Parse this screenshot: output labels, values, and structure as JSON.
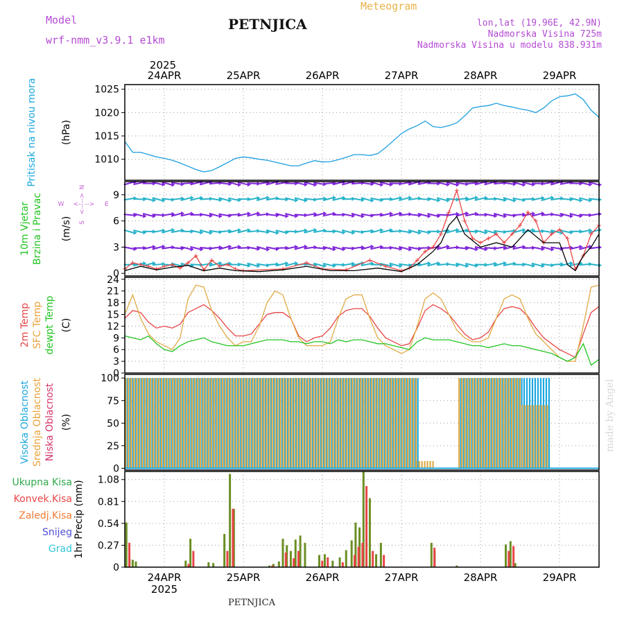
{
  "header": {
    "model_label": "Model",
    "model_name": "wrf-nmm_v3.9.1 e1km",
    "station": "PETNJICA",
    "product": "Meteogram",
    "lonlat": "lon,lat (19.96E, 42.9N)",
    "elevation": "Nadmorska Visina 725m",
    "model_elevation": "Nadmorska Visina u modelu 838.931m",
    "footer": "PETNJICA",
    "watermark": "made by Angel",
    "colors": {
      "purple": "#b44bd3",
      "orange": "#e8b24a"
    }
  },
  "time_axis": {
    "labels": [
      "24APR",
      "25APR",
      "26APR",
      "27APR",
      "28APR",
      "29APR"
    ],
    "year": "2025",
    "start_day": 23.5,
    "end_day": 29.5
  },
  "chart_data": [
    {
      "type": "line",
      "panel": "pressure",
      "ylabel": [
        "Pritisak na nivou mora",
        "(hPa)"
      ],
      "ylabel_colors": [
        "#1ba7e0",
        "#000000"
      ],
      "yticks": [
        1010,
        1015,
        1020,
        1025
      ],
      "ylim": [
        1005.5,
        1026
      ],
      "grid": true,
      "series": [
        {
          "color": "#1b9ee0",
          "x": [
            23.5,
            23.6,
            23.7,
            23.8,
            23.9,
            24.0,
            24.1,
            24.2,
            24.3,
            24.4,
            24.5,
            24.6,
            24.7,
            24.8,
            24.9,
            25.0,
            25.1,
            25.2,
            25.3,
            25.4,
            25.5,
            25.6,
            25.7,
            25.8,
            25.9,
            26.0,
            26.1,
            26.2,
            26.3,
            26.4,
            26.5,
            26.6,
            26.7,
            26.8,
            26.9,
            27.0,
            27.1,
            27.2,
            27.3,
            27.4,
            27.5,
            27.6,
            27.7,
            27.8,
            27.9,
            28.0,
            28.1,
            28.2,
            28.3,
            28.4,
            28.5,
            28.6,
            28.7,
            28.8,
            28.9,
            29.0,
            29.1,
            29.2,
            29.3,
            29.4,
            29.5
          ],
          "y": [
            1013.8,
            1011.5,
            1011.5,
            1011.0,
            1010.5,
            1010.2,
            1009.8,
            1009.2,
            1008.5,
            1007.8,
            1007.3,
            1007.6,
            1008.4,
            1009.3,
            1010.2,
            1010.5,
            1010.3,
            1010.0,
            1009.8,
            1009.4,
            1009.0,
            1008.6,
            1008.6,
            1009.2,
            1009.7,
            1009.4,
            1009.5,
            1009.9,
            1010.4,
            1011.0,
            1011.0,
            1010.8,
            1011.2,
            1012.5,
            1014.0,
            1015.5,
            1016.5,
            1017.2,
            1018.2,
            1017.0,
            1016.8,
            1017.2,
            1017.8,
            1019.3,
            1021.0,
            1021.3,
            1021.5,
            1022.0,
            1021.5,
            1021.2,
            1020.8,
            1020.5,
            1020.0,
            1021.0,
            1022.5,
            1023.4,
            1023.6,
            1024.0,
            1022.8,
            1020.5,
            1019.0
          ]
        }
      ]
    },
    {
      "type": "line",
      "panel": "wind",
      "ylabel": [
        "10m Vjetar",
        "Brzina i Pravac",
        "(m/s)"
      ],
      "ylabel_colors": [
        "#22c422",
        "#22c422",
        "#000000"
      ],
      "compass": {
        "n": "N",
        "s": "S",
        "w": "W",
        "e": "E",
        "arrow": "<-- -->"
      },
      "yticks": [
        0,
        3,
        6,
        9
      ],
      "ylim": [
        -0.3,
        10.5
      ],
      "grid": true,
      "series": [
        {
          "name": "gust",
          "color": "#e84545",
          "marker": "+",
          "x": [
            23.5,
            23.6,
            23.7,
            23.8,
            23.9,
            24.0,
            24.1,
            24.2,
            24.3,
            24.4,
            24.5,
            24.6,
            24.7,
            24.8,
            24.9,
            25.0,
            25.5,
            25.8,
            26.0,
            26.3,
            26.6,
            26.8,
            27.0,
            27.1,
            27.2,
            27.3,
            27.4,
            27.5,
            27.6,
            27.7,
            27.8,
            27.9,
            28.0,
            28.1,
            28.2,
            28.3,
            28.4,
            28.5,
            28.6,
            28.7,
            28.8,
            28.9,
            29.0,
            29.1,
            29.2,
            29.3,
            29.4,
            29.5
          ],
          "y": [
            0.5,
            1.2,
            1.0,
            0.8,
            0.5,
            0.8,
            1.0,
            0.6,
            1.2,
            2.0,
            0.4,
            1.5,
            0.8,
            1.0,
            0.5,
            0.3,
            0.5,
            1.2,
            0.5,
            0.4,
            1.5,
            0.8,
            0.3,
            0.6,
            1.5,
            2.5,
            3.0,
            4.5,
            7.0,
            9.5,
            6.0,
            4.0,
            3.5,
            4.0,
            4.5,
            3.5,
            4.5,
            5.5,
            7.0,
            6.0,
            3.5,
            4.5,
            5.0,
            4.0,
            0.5,
            2.0,
            4.5,
            5.5
          ]
        },
        {
          "name": "speed",
          "color": "#000000",
          "x": [
            23.5,
            23.7,
            23.9,
            24.1,
            24.3,
            24.5,
            24.7,
            24.9,
            25.2,
            25.5,
            25.8,
            26.1,
            26.4,
            26.7,
            27.0,
            27.2,
            27.4,
            27.5,
            27.6,
            27.7,
            27.8,
            28.0,
            28.2,
            28.4,
            28.5,
            28.6,
            28.8,
            29.0,
            29.1,
            29.2,
            29.3,
            29.4,
            29.5
          ],
          "y": [
            0.3,
            0.8,
            0.4,
            0.7,
            0.9,
            0.3,
            0.6,
            0.3,
            0.2,
            0.4,
            0.8,
            0.3,
            0.3,
            0.6,
            0.2,
            1.0,
            2.5,
            3.5,
            5.5,
            6.5,
            4.5,
            3.0,
            3.5,
            3.0,
            4.0,
            5.0,
            3.5,
            3.5,
            1.0,
            0.3,
            2.0,
            3.0,
            4.5
          ]
        }
      ],
      "arrow_rows": [
        {
          "level": 10.3,
          "color": "#7e22d9"
        },
        {
          "level": 8.5,
          "color": "#25b2c9"
        },
        {
          "level": 6.7,
          "color": "#7e22d9"
        },
        {
          "level": 4.8,
          "color": "#25b2c9"
        },
        {
          "level": 2.9,
          "color": "#7e22d9"
        },
        {
          "level": 1.0,
          "color": "#25b2c9"
        }
      ]
    },
    {
      "type": "line",
      "panel": "temperature",
      "ylabel": [
        "2m Temp",
        "SFC Temp",
        "dewpt Temp",
        "(C)"
      ],
      "ylabel_colors": [
        "#e84545",
        "#e8a23a",
        "#22c422",
        "#000000"
      ],
      "yticks": [
        0,
        3,
        6,
        9,
        12,
        15,
        18,
        21,
        24
      ],
      "ylim": [
        0,
        24.5
      ],
      "grid": true,
      "series": [
        {
          "name": "2m Temp",
          "color": "#e84545",
          "x": [
            23.5,
            23.6,
            23.7,
            23.8,
            23.9,
            24.0,
            24.1,
            24.2,
            24.3,
            24.4,
            24.5,
            24.6,
            24.7,
            24.8,
            24.9,
            25.0,
            25.1,
            25.2,
            25.3,
            25.4,
            25.5,
            25.6,
            25.7,
            25.8,
            25.9,
            26.0,
            26.1,
            26.2,
            26.3,
            26.4,
            26.5,
            26.6,
            26.7,
            26.8,
            26.9,
            27.0,
            27.1,
            27.2,
            27.3,
            27.4,
            27.5,
            27.6,
            27.7,
            27.8,
            27.9,
            28.0,
            28.1,
            28.2,
            28.3,
            28.4,
            28.5,
            28.6,
            28.7,
            28.8,
            28.9,
            29.0,
            29.1,
            29.2,
            29.3,
            29.4,
            29.5
          ],
          "y": [
            14,
            16,
            15.5,
            13,
            11.5,
            12,
            11.5,
            12.5,
            15.5,
            16.5,
            17.5,
            16,
            14,
            11.5,
            9.5,
            9.5,
            10,
            12.5,
            15,
            15.5,
            15.5,
            14,
            9.5,
            8,
            9,
            9.5,
            11.5,
            14.5,
            16,
            16.5,
            16.5,
            14.5,
            11.5,
            9,
            8,
            7,
            7.5,
            11.5,
            16,
            17.5,
            16.5,
            15,
            12.5,
            10,
            8.5,
            9,
            10.5,
            14,
            16.5,
            17,
            16.5,
            14.5,
            11.5,
            9,
            7.5,
            6,
            5,
            4,
            10,
            15.5,
            17
          ]
        },
        {
          "name": "SFC Temp",
          "color": "#e0aa45",
          "x": [
            23.5,
            23.6,
            23.7,
            23.8,
            23.9,
            24.0,
            24.1,
            24.2,
            24.3,
            24.4,
            24.5,
            24.6,
            24.7,
            24.8,
            24.9,
            25.0,
            25.1,
            25.2,
            25.3,
            25.4,
            25.5,
            25.6,
            25.7,
            25.8,
            25.9,
            26.0,
            26.1,
            26.2,
            26.3,
            26.4,
            26.5,
            26.6,
            26.7,
            26.8,
            26.9,
            27.0,
            27.1,
            27.2,
            27.3,
            27.4,
            27.5,
            27.6,
            27.7,
            27.8,
            27.9,
            28.0,
            28.1,
            28.2,
            28.3,
            28.4,
            28.5,
            28.6,
            28.7,
            28.8,
            28.9,
            29.0,
            29.1,
            29.2,
            29.3,
            29.4,
            29.5
          ],
          "y": [
            15,
            20,
            14,
            10,
            8,
            7,
            6,
            9,
            19,
            22.5,
            22,
            16,
            12,
            9,
            7,
            8,
            8,
            12,
            18,
            21,
            20,
            14,
            9,
            7,
            7,
            7,
            8,
            14,
            19,
            20,
            20,
            14,
            9,
            7,
            6,
            5,
            6,
            12,
            19,
            20.5,
            19,
            15,
            11,
            9,
            8,
            8,
            9,
            14,
            19,
            20,
            19,
            14,
            10,
            8,
            6,
            4,
            3,
            3,
            12,
            22,
            22.5
          ]
        },
        {
          "name": "dewpt Temp",
          "color": "#22c422",
          "x": [
            23.5,
            23.6,
            23.7,
            23.8,
            23.9,
            24.0,
            24.1,
            24.2,
            24.3,
            24.4,
            24.5,
            24.6,
            24.7,
            24.8,
            24.9,
            25.0,
            25.1,
            25.2,
            25.3,
            25.4,
            25.5,
            25.6,
            25.7,
            25.8,
            25.9,
            26.0,
            26.1,
            26.2,
            26.3,
            26.4,
            26.5,
            26.6,
            26.7,
            26.8,
            26.9,
            27.0,
            27.1,
            27.2,
            27.3,
            27.4,
            27.5,
            27.6,
            27.7,
            27.8,
            27.9,
            28.0,
            28.1,
            28.2,
            28.3,
            28.4,
            28.5,
            28.6,
            28.7,
            28.8,
            28.9,
            29.0,
            29.1,
            29.2,
            29.3,
            29.4,
            29.5
          ],
          "y": [
            9.5,
            9,
            8.5,
            9.5,
            7.5,
            6,
            5.5,
            7,
            8,
            8.5,
            9,
            8,
            7.5,
            7,
            7,
            7,
            7.5,
            8,
            8.5,
            8.5,
            8.5,
            8,
            8,
            7.5,
            8,
            8,
            7.5,
            8.5,
            8,
            8.5,
            8.5,
            8,
            7.5,
            7.5,
            7,
            6.5,
            6,
            8,
            9,
            8.5,
            8.5,
            8.5,
            8,
            7.5,
            7,
            7,
            6.5,
            7,
            7.5,
            7,
            7,
            6.5,
            6,
            5.5,
            5,
            4,
            3,
            4,
            7.5,
            2,
            3.5
          ]
        }
      ]
    },
    {
      "type": "bar",
      "panel": "cloud",
      "ylabel": [
        "Visoka Oblacnost",
        "Srednja Oblacnost",
        "Niska Oblacnost",
        "(%)"
      ],
      "ylabel_colors": [
        "#1ba7e0",
        "#e8a23a",
        "#d6336c",
        "#000000"
      ],
      "yticks": [
        0,
        25,
        50,
        75,
        100
      ],
      "ylim": [
        -2,
        104
      ],
      "grid": true,
      "series": [
        {
          "name": "Visoka Oblacnost",
          "color": "#1ba7e0"
        },
        {
          "name": "Srednja Oblacnost",
          "color": "#e0aa45"
        },
        {
          "name": "Niska Oblacnost",
          "color": "#d6336c"
        }
      ],
      "segments": [
        {
          "x0": 23.5,
          "x1": 27.18,
          "high": 100,
          "mid": 100
        },
        {
          "x0": 27.18,
          "x1": 27.42,
          "high": 0,
          "mid": 8
        },
        {
          "x0": 27.42,
          "x1": 27.72,
          "high": 0,
          "mid": 0
        },
        {
          "x0": 27.72,
          "x1": 28.52,
          "high": 100,
          "mid": 100
        },
        {
          "x0": 28.52,
          "x1": 28.86,
          "high": 100,
          "mid": 70
        },
        {
          "x0": 28.86,
          "x1": 29.5,
          "high": 0,
          "mid": 0
        }
      ]
    },
    {
      "type": "bar",
      "panel": "precipitation",
      "ylabel": [
        "1hr Precip (mm)"
      ],
      "ylabel_colors": [
        "#000000"
      ],
      "legend": [
        "Ukupna Kisa",
        "Konvek.Kisa",
        "Zaledj.Kisa",
        "Snijeg",
        "Grad"
      ],
      "legend_colors": [
        "#2fa84a",
        "#e84545",
        "#f07a35",
        "#5050d8",
        "#30c8d8"
      ],
      "yticks": [
        0,
        0.27,
        0.54,
        0.81,
        1.08
      ],
      "ytick_labels": [
        "0",
        "0.27",
        "0.54",
        "0.81",
        "1.08"
      ],
      "ylim": [
        0,
        1.18
      ],
      "grid": true,
      "series": [
        {
          "name": "Ukupna Kisa",
          "color": "#6b8e23",
          "x": [
            23.52,
            23.56,
            23.6,
            23.64,
            24.27,
            24.33,
            24.56,
            24.62,
            24.76,
            24.83,
            24.88,
            25.33,
            25.38,
            25.45,
            25.5,
            25.55,
            25.6,
            25.66,
            25.72,
            25.78,
            25.96,
            26.03,
            26.13,
            26.22,
            26.3,
            26.37,
            26.42,
            26.47,
            26.52,
            26.6,
            26.68,
            26.74,
            27.38,
            27.42,
            27.7,
            28.32,
            28.38,
            28.44
          ],
          "y": [
            0.55,
            0.1,
            0.09,
            0.07,
            0.08,
            0.35,
            0.06,
            0.05,
            0.41,
            1.15,
            0.72,
            0.02,
            0.04,
            0.07,
            0.35,
            0.27,
            0.2,
            0.34,
            0.39,
            0.3,
            0.15,
            0.16,
            0.08,
            0.12,
            0.21,
            0.33,
            0.55,
            0.49,
            1.18,
            0.85,
            0.16,
            0.3,
            0.3,
            0.2,
            0.02,
            0.28,
            0.32,
            0.05
          ]
        },
        {
          "name": "Konvek.Kisa",
          "color": "#e84545",
          "x": [
            23.54,
            24.29,
            24.35,
            24.78,
            24.85,
            25.35,
            25.52,
            25.62,
            25.68,
            25.98,
            26.05,
            26.24,
            26.39,
            26.44,
            26.49,
            26.54,
            26.62,
            26.76,
            27.4,
            28.34,
            28.4
          ],
          "y": [
            0.3,
            0.04,
            0.2,
            0.2,
            0.72,
            0.02,
            0.18,
            0.11,
            0.2,
            0.08,
            0.12,
            0.06,
            0.15,
            0.25,
            0.3,
            1.0,
            0.2,
            0.15,
            0.24,
            0.2,
            0.26
          ]
        }
      ]
    }
  ]
}
